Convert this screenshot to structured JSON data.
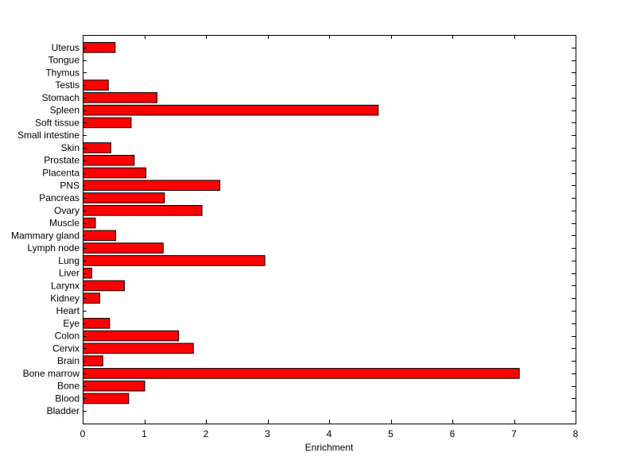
{
  "chart_data": {
    "type": "bar",
    "orientation": "horizontal",
    "xlabel": "Enrichment",
    "ylabel": "",
    "title": "",
    "xlim": [
      0,
      8
    ],
    "xticks": [
      0,
      1,
      2,
      3,
      4,
      5,
      6,
      7,
      8
    ],
    "grid": false,
    "bar_color": "#ff0000",
    "bar_edge_color": "#000000",
    "categories": [
      "Bladder",
      "Blood",
      "Bone",
      "Bone marrow",
      "Brain",
      "Cervix",
      "Colon",
      "Eye",
      "Heart",
      "Kidney",
      "Larynx",
      "Liver",
      "Lung",
      "Lymph node",
      "Mammary gland",
      "Muscle",
      "Ovary",
      "Pancreas",
      "PNS",
      "Placenta",
      "Prostate",
      "Skin",
      "Small intestine",
      "Soft tissue",
      "Spleen",
      "Stomach",
      "Testis",
      "Thymus",
      "Tongue",
      "Uterus"
    ],
    "values": [
      0,
      0.74,
      1.0,
      7.08,
      0.32,
      1.79,
      1.55,
      0.43,
      0,
      0.27,
      0.67,
      0.14,
      2.95,
      1.3,
      0.53,
      0.2,
      1.93,
      1.32,
      2.22,
      1.02,
      0.83,
      0.45,
      0,
      0.78,
      4.79,
      1.2,
      0.41,
      0,
      0,
      0.52
    ]
  }
}
